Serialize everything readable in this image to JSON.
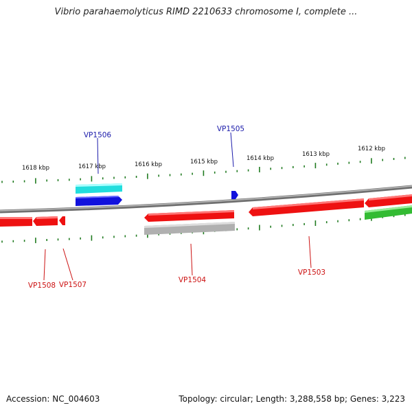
{
  "title": "Vibrio parahaemolyticus RIMD 2210633 chromosome I, complete ...",
  "footer": {
    "accession": "Accession: NC_004603",
    "summary": "Topology: circular; Length: 3,288,558 bp; Genes: 3,223"
  },
  "ruler_labels": [
    "1618 kbp",
    "1617 kbp",
    "1616 kbp",
    "1615 kbp",
    "1614 kbp",
    "1613 kbp",
    "1612 kbp"
  ],
  "gene_labels": [
    {
      "text": "VP1506",
      "color": "#1a1aaa"
    },
    {
      "text": "VP1505",
      "color": "#1a1aaa"
    },
    {
      "text": "VP1508",
      "color": "#cc1111"
    },
    {
      "text": "VP1507",
      "color": "#cc1111"
    },
    {
      "text": "VP1504",
      "color": "#cc1111"
    },
    {
      "text": "VP1503",
      "color": "#cc1111"
    }
  ],
  "colors": {
    "backbone": "#8a8a8a",
    "tick": "#1f7a1f",
    "forward_gene": "#ee1111",
    "reverse_gene": "#1111dd",
    "cyan_gene": "#22dddd",
    "gray_gene": "#b0b0b0",
    "green_gene": "#33bb33"
  }
}
